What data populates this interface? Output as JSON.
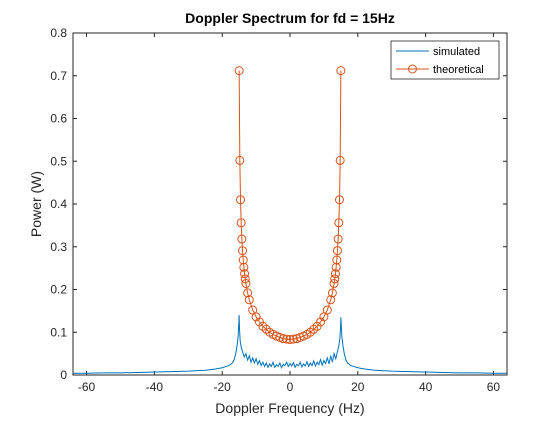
{
  "chart_data": {
    "type": "line",
    "title": "Doppler Spectrum for fd = 15Hz",
    "xlabel": "Doppler Frequency (Hz)",
    "ylabel": "Power (W)",
    "xlim": [
      -64,
      64
    ],
    "ylim": [
      0,
      0.8
    ],
    "xticks": [
      -60,
      -40,
      -20,
      0,
      20,
      40,
      60
    ],
    "xtick_labels": [
      "-60",
      "-40",
      "-20",
      "0",
      "20",
      "40",
      "60"
    ],
    "yticks": [
      0,
      0.1,
      0.2,
      0.3,
      0.4,
      0.5,
      0.6,
      0.7,
      0.8
    ],
    "ytick_labels": [
      "0",
      "0.1",
      "0.2",
      "0.3",
      "0.4",
      "0.5",
      "0.6",
      "0.7",
      "0.8"
    ],
    "grid": false,
    "legend_position": "top-right",
    "series": [
      {
        "name": "simulated",
        "color": "#0072BD",
        "marker": "none",
        "x": [
          -64,
          -60,
          -55,
          -50,
          -45,
          -40,
          -35,
          -30,
          -25,
          -22,
          -20,
          -18,
          -17,
          -16.5,
          -16,
          -15.6,
          -15.3,
          -15.1,
          -15.0,
          -14.9,
          -14.7,
          -14.4,
          -14,
          -13.5,
          -13,
          -12.5,
          -12,
          -11.5,
          -11,
          -10.5,
          -10,
          -9.5,
          -9,
          -8.5,
          -8,
          -7.5,
          -7,
          -6.5,
          -6,
          -5.5,
          -5,
          -4.5,
          -4,
          -3.5,
          -3,
          -2.5,
          -2,
          -1.5,
          -1,
          -0.5,
          0,
          0.5,
          1,
          1.5,
          2,
          2.5,
          3,
          3.5,
          4,
          4.5,
          5,
          5.5,
          6,
          6.5,
          7,
          7.5,
          8,
          8.5,
          9,
          9.5,
          10,
          10.5,
          11,
          11.5,
          12,
          12.5,
          13,
          13.5,
          14,
          14.4,
          14.7,
          14.9,
          15.0,
          15.1,
          15.3,
          15.6,
          16,
          16.5,
          17,
          18,
          20,
          22,
          25,
          30,
          35,
          40,
          45,
          50,
          55,
          60,
          64
        ],
        "y": [
          0.004,
          0.004,
          0.005,
          0.005,
          0.006,
          0.007,
          0.008,
          0.009,
          0.011,
          0.014,
          0.017,
          0.022,
          0.028,
          0.035,
          0.05,
          0.07,
          0.09,
          0.12,
          0.14,
          0.11,
          0.08,
          0.065,
          0.055,
          0.042,
          0.05,
          0.035,
          0.045,
          0.03,
          0.04,
          0.028,
          0.038,
          0.025,
          0.034,
          0.022,
          0.03,
          0.02,
          0.028,
          0.018,
          0.026,
          0.02,
          0.03,
          0.018,
          0.024,
          0.02,
          0.028,
          0.017,
          0.025,
          0.022,
          0.03,
          0.02,
          0.027,
          0.021,
          0.029,
          0.018,
          0.025,
          0.022,
          0.03,
          0.019,
          0.026,
          0.021,
          0.031,
          0.02,
          0.028,
          0.022,
          0.033,
          0.021,
          0.03,
          0.024,
          0.036,
          0.023,
          0.034,
          0.027,
          0.04,
          0.026,
          0.045,
          0.03,
          0.05,
          0.038,
          0.055,
          0.068,
          0.085,
          0.11,
          0.135,
          0.12,
          0.09,
          0.07,
          0.05,
          0.035,
          0.028,
          0.022,
          0.017,
          0.014,
          0.011,
          0.009,
          0.008,
          0.007,
          0.006,
          0.005,
          0.005,
          0.004,
          0.004
        ]
      },
      {
        "name": "theoretical",
        "color": "#D95319",
        "marker": "circle",
        "x": [
          -15,
          -14.8,
          -14.6,
          -14.4,
          -14.2,
          -14,
          -13.8,
          -13.6,
          -13.4,
          -13.2,
          -13,
          -12.5,
          -12,
          -11,
          -10,
          -9,
          -8,
          -7,
          -6,
          -5,
          -4,
          -3,
          -2,
          -1,
          0,
          1,
          2,
          3,
          4,
          5,
          6,
          7,
          8,
          9,
          10,
          11,
          12,
          12.5,
          13,
          13.2,
          13.4,
          13.6,
          13.8,
          14,
          14.2,
          14.4,
          14.6,
          14.8,
          15
        ],
        "y": [
          0.712,
          0.502,
          0.41,
          0.356,
          0.318,
          0.291,
          0.269,
          0.252,
          0.237,
          0.225,
          0.214,
          0.192,
          0.176,
          0.152,
          0.136,
          0.124,
          0.114,
          0.107,
          0.1,
          0.095,
          0.091,
          0.088,
          0.085,
          0.084,
          0.083,
          0.084,
          0.085,
          0.088,
          0.091,
          0.095,
          0.1,
          0.107,
          0.114,
          0.124,
          0.136,
          0.152,
          0.176,
          0.192,
          0.214,
          0.225,
          0.237,
          0.252,
          0.269,
          0.291,
          0.318,
          0.356,
          0.41,
          0.502,
          0.712
        ]
      }
    ]
  }
}
